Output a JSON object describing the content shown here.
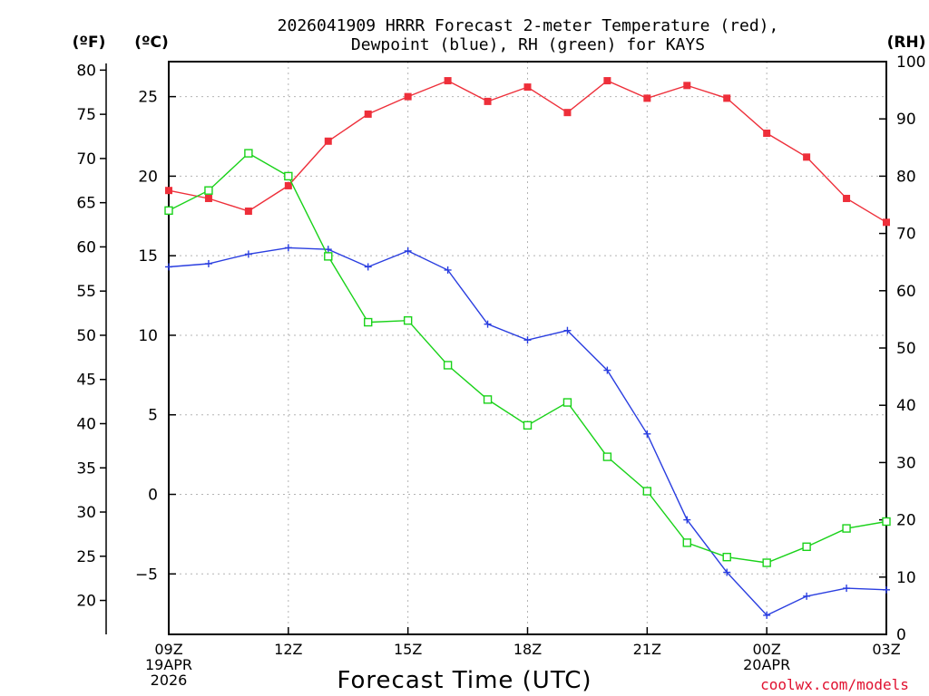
{
  "chart_data": {
    "type": "line",
    "title_line1": "2026041909 HRRR Forecast 2-meter Temperature (red),",
    "title_line2": "Dewpoint (blue), RH (green) for KAYS",
    "units": {
      "fahrenheit": "(ºF)",
      "celsius": "(ºC)",
      "rh": "(RH)"
    },
    "xlabel": "Forecast Time (UTC)",
    "credit": "coolwx.com/models",
    "x_hours": [
      0,
      1,
      2,
      3,
      4,
      5,
      6,
      7,
      8,
      9,
      10,
      11,
      12,
      13,
      14,
      15,
      16,
      17,
      18
    ],
    "xlim": [
      0,
      18
    ],
    "x_ticks": [
      {
        "hour": 0,
        "lines": [
          "09Z",
          "19APR",
          "2026"
        ]
      },
      {
        "hour": 3,
        "lines": [
          "12Z"
        ]
      },
      {
        "hour": 6,
        "lines": [
          "15Z"
        ]
      },
      {
        "hour": 9,
        "lines": [
          "18Z"
        ]
      },
      {
        "hour": 12,
        "lines": [
          "21Z"
        ]
      },
      {
        "hour": 15,
        "lines": [
          "00Z",
          "20APR"
        ]
      },
      {
        "hour": 18,
        "lines": [
          "03Z"
        ]
      }
    ],
    "celsius_axis": {
      "ylim": [
        -8.8,
        27.2
      ],
      "ticks": [
        "25",
        "20",
        "15",
        "10",
        "5",
        "0",
        "−5"
      ],
      "tick_values": [
        25,
        20,
        15,
        10,
        5,
        0,
        -5
      ]
    },
    "fahrenheit_axis": {
      "ylim": [
        16.16,
        80.96
      ],
      "ticks": [
        "80",
        "75",
        "70",
        "65",
        "60",
        "55",
        "50",
        "45",
        "40",
        "35",
        "30",
        "25",
        "20"
      ],
      "tick_values": [
        80,
        75,
        70,
        65,
        60,
        55,
        50,
        45,
        40,
        35,
        30,
        25,
        20
      ]
    },
    "rh_axis": {
      "ylim": [
        0,
        100
      ],
      "ticks": [
        "100",
        "90",
        "80",
        "70",
        "60",
        "50",
        "40",
        "30",
        "20",
        "10",
        "0"
      ],
      "tick_values": [
        100,
        90,
        80,
        70,
        60,
        50,
        40,
        30,
        20,
        10,
        0
      ]
    },
    "series": [
      {
        "name": "Temperature",
        "color": "#ee2f3a",
        "marker": "filled-square",
        "axis": "celsius",
        "values": [
          19.1,
          18.6,
          17.8,
          19.4,
          22.2,
          23.9,
          25.0,
          26.0,
          24.7,
          25.6,
          24.0,
          26.0,
          24.9,
          25.7,
          24.9,
          22.7,
          21.2,
          18.6,
          17.1
        ]
      },
      {
        "name": "Dewpoint",
        "color": "#2a3ee0",
        "marker": "plus",
        "axis": "celsius",
        "values": [
          14.3,
          14.5,
          15.1,
          15.5,
          15.4,
          14.3,
          15.3,
          14.1,
          10.7,
          9.7,
          10.3,
          7.8,
          3.8,
          -1.6,
          -4.9,
          -7.6,
          -6.4,
          -5.9,
          -6.0
        ]
      },
      {
        "name": "RH",
        "color": "#19d219",
        "marker": "open-square",
        "axis": "rh",
        "values": [
          74,
          77.5,
          84,
          80,
          66,
          54.5,
          54.8,
          47,
          41,
          36.5,
          40.5,
          31,
          25,
          16,
          13.5,
          12.5,
          15.3,
          18.5,
          19.7
        ]
      }
    ]
  }
}
